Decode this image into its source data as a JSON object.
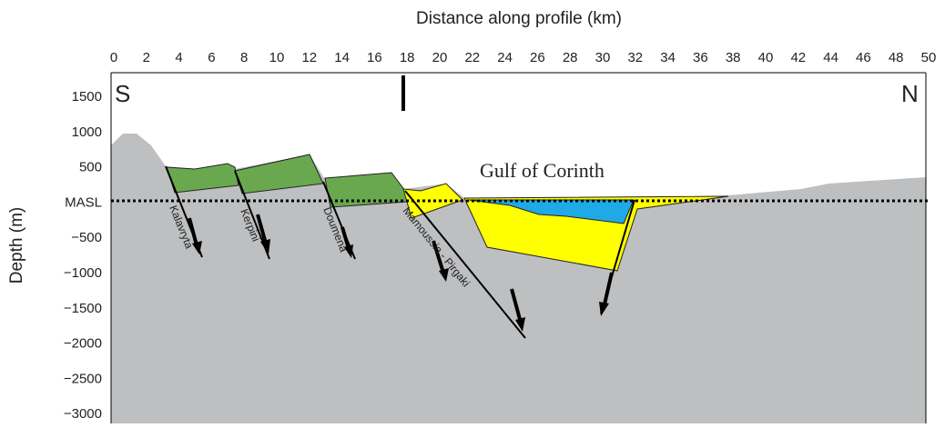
{
  "x_axis": {
    "title": "Distance along profile (km)",
    "ticks": [
      "0",
      "2",
      "4",
      "6",
      "8",
      "10",
      "12",
      "14",
      "16",
      "18",
      "20",
      "22",
      "24",
      "26",
      "28",
      "30",
      "32",
      "34",
      "36",
      "38",
      "40",
      "42",
      "44",
      "46",
      "48",
      "50"
    ]
  },
  "y_axis": {
    "title": "Depth (m)",
    "ticks": [
      "1500",
      "1000",
      "500",
      "MASL",
      "−500",
      "−1000",
      "−1500",
      "−2000",
      "−2500",
      "−3000"
    ]
  },
  "labels": {
    "south": "S",
    "north": "N",
    "sea": "Gulf of Corinth"
  },
  "faults": [
    "Kalavryta",
    "Kerpini",
    "Doumena",
    "Mamoussia - Pirgaki"
  ]
}
